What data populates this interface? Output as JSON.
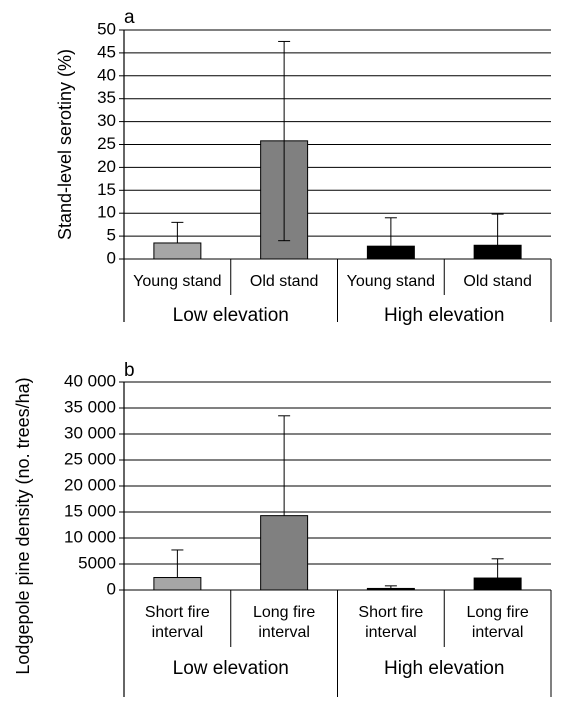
{
  "chart_data": [
    {
      "panel_label": "a",
      "type": "bar",
      "ylabel": "Stand-level serotiny (%)",
      "ylim": [
        0,
        50
      ],
      "yticks": [
        0,
        5,
        10,
        15,
        20,
        25,
        30,
        35,
        40,
        45,
        50
      ],
      "ytick_labels": [
        "0",
        "5",
        "10",
        "15",
        "20",
        "25",
        "30",
        "35",
        "40",
        "45",
        "50"
      ],
      "categories": [
        "Young stand",
        "Old stand",
        "Young stand",
        "Old stand"
      ],
      "groups": [
        {
          "label": "Low elevation",
          "span": [
            0,
            1
          ]
        },
        {
          "label": "High elevation",
          "span": [
            2,
            3
          ]
        }
      ],
      "values": [
        3.5,
        25.8,
        2.8,
        3.0
      ],
      "error_upper": [
        8.0,
        47.5,
        9.0,
        9.8
      ],
      "error_lower": [
        null,
        4.0,
        null,
        null
      ],
      "colors": [
        "#a6a6a6",
        "#808080",
        "#000000",
        "#000000"
      ],
      "grid": true,
      "legend": "none"
    },
    {
      "panel_label": "b",
      "type": "bar",
      "ylabel": "Lodgepole pine density (no. trees/ha)",
      "ylim": [
        0,
        40000
      ],
      "yticks": [
        0,
        5000,
        10000,
        15000,
        20000,
        25000,
        30000,
        35000,
        40000
      ],
      "ytick_labels": [
        "0",
        "5000",
        "10 000",
        "15 000",
        "20 000",
        "25 000",
        "30 000",
        "35 000",
        "40 000"
      ],
      "categories": [
        [
          "Short fire",
          "interval"
        ],
        [
          "Long fire",
          "interval"
        ],
        [
          "Short fire",
          "interval"
        ],
        [
          "Long fire",
          "interval"
        ]
      ],
      "groups": [
        {
          "label": "Low elevation",
          "span": [
            0,
            1
          ]
        },
        {
          "label": "High elevation",
          "span": [
            2,
            3
          ]
        }
      ],
      "values": [
        2400,
        14300,
        300,
        2300
      ],
      "error_upper": [
        7700,
        33500,
        800,
        6000
      ],
      "error_lower": [
        null,
        null,
        null,
        null
      ],
      "colors": [
        "#a6a6a6",
        "#808080",
        "#000000",
        "#000000"
      ],
      "grid": true,
      "legend": "none"
    }
  ]
}
